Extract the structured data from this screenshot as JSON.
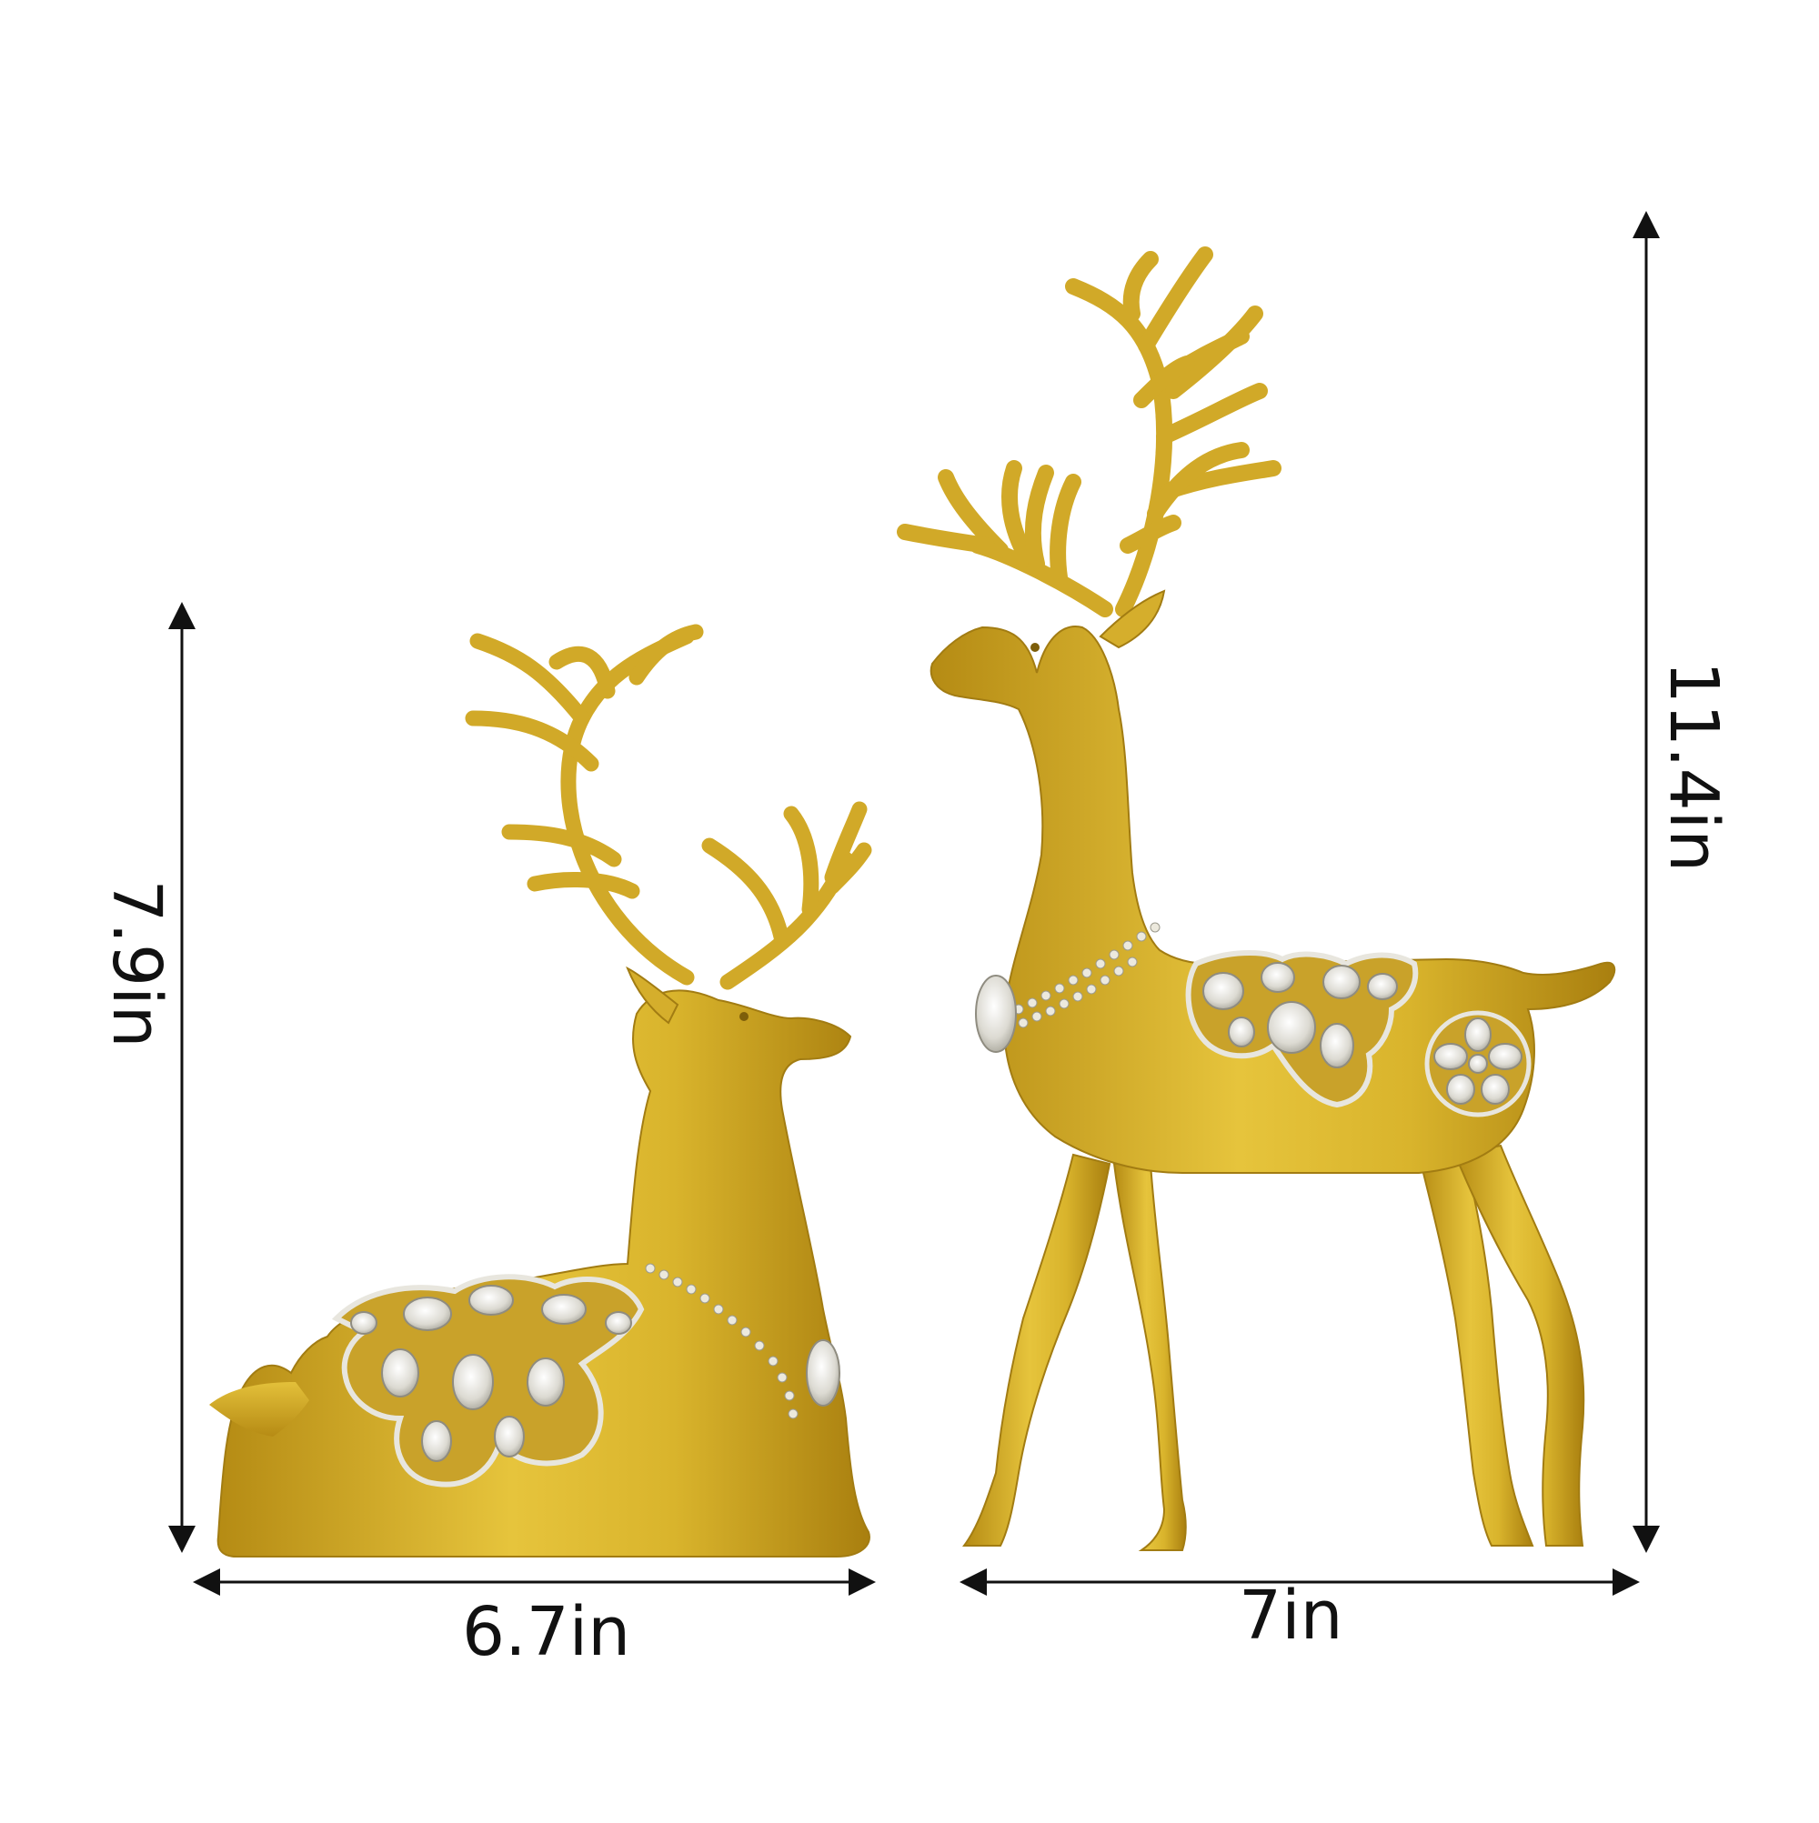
{
  "dimensions": {
    "reclining_deer_height": "7.9in",
    "reclining_deer_width": "6.7in",
    "standing_deer_height": "11.4in",
    "standing_deer_width": "7in"
  },
  "colors": {
    "gold_light": "#e8c640",
    "gold": "#d4ad24",
    "gold_dark": "#a77f10",
    "silver": "#e4e4e0",
    "silver_shadow": "#9c9a8e",
    "arrow": "#111111",
    "background": "#ffffff"
  }
}
